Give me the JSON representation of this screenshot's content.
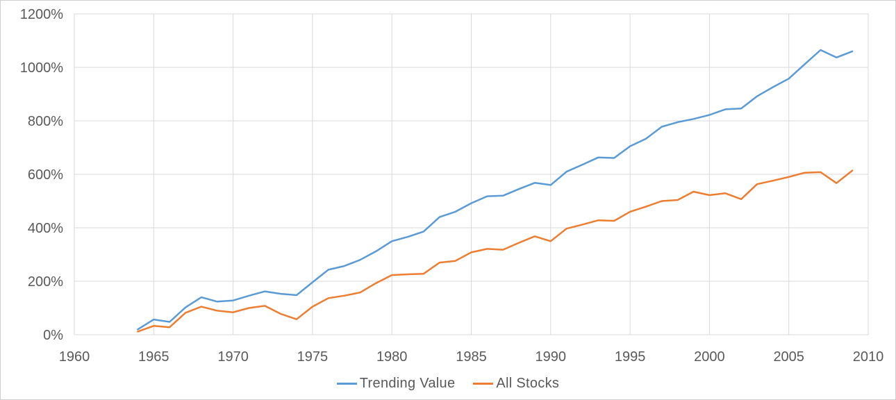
{
  "chart_data": {
    "type": "line",
    "title": "",
    "xlabel": "",
    "ylabel": "",
    "x": [
      1964,
      1965,
      1966,
      1967,
      1968,
      1969,
      1970,
      1971,
      1972,
      1973,
      1974,
      1975,
      1976,
      1977,
      1978,
      1979,
      1980,
      1981,
      1982,
      1983,
      1984,
      1985,
      1986,
      1987,
      1988,
      1989,
      1990,
      1991,
      1992,
      1993,
      1994,
      1995,
      1996,
      1997,
      1998,
      1999,
      2000,
      2001,
      2002,
      2003,
      2004,
      2005,
      2006,
      2007,
      2008,
      2009
    ],
    "series": [
      {
        "name": "Trending Value",
        "color": "#5B9BD5",
        "values": [
          20,
          57,
          48,
          102,
          140,
          124,
          128,
          146,
          162,
          153,
          148,
          196,
          243,
          257,
          280,
          312,
          350,
          366,
          386,
          440,
          460,
          492,
          518,
          520,
          545,
          568,
          560,
          610,
          636,
          663,
          661,
          705,
          733,
          778,
          795,
          807,
          822,
          843,
          846,
          892,
          926,
          958,
          1012,
          1065,
          1037,
          1060
        ]
      },
      {
        "name": "All Stocks",
        "color": "#ED7D31",
        "values": [
          12,
          33,
          28,
          82,
          105,
          90,
          84,
          100,
          108,
          78,
          58,
          105,
          137,
          146,
          158,
          193,
          223,
          226,
          228,
          270,
          276,
          308,
          321,
          318,
          344,
          368,
          350,
          397,
          412,
          428,
          426,
          460,
          479,
          500,
          504,
          535,
          522,
          529,
          507,
          563,
          576,
          590,
          606,
          608,
          567,
          614
        ]
      }
    ],
    "xlim": [
      1960,
      2010
    ],
    "ylim": [
      0,
      1200
    ],
    "x_ticks": [
      1960,
      1965,
      1970,
      1975,
      1980,
      1985,
      1990,
      1995,
      2000,
      2005,
      2010
    ],
    "y_tick_values": [
      0,
      200,
      400,
      600,
      800,
      1000,
      1200
    ],
    "y_tick_labels": [
      "0%",
      "200%",
      "400%",
      "600%",
      "800%",
      "1000%",
      "1200%"
    ],
    "grid": true,
    "legend_position": "bottom",
    "colors": {
      "gridline": "#D9D9D9",
      "plot_border": "#D9D9D9",
      "tick_text": "#595959"
    }
  }
}
